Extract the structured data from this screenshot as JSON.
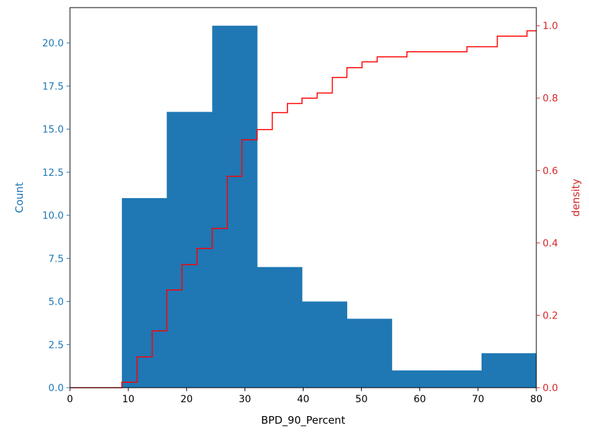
{
  "chart_data": {
    "type": "bar",
    "xlabel": "BPD_90_Percent",
    "xlim": [
      0,
      80
    ],
    "xticks": [
      0,
      10,
      20,
      30,
      40,
      50,
      60,
      70,
      80
    ],
    "left_axis": {
      "label": "Count",
      "color": "#1f77b4",
      "ylim": [
        0,
        22.05
      ],
      "ticks": [
        0.0,
        2.5,
        5.0,
        7.5,
        10.0,
        12.5,
        15.0,
        17.5,
        20.0
      ],
      "tick_labels": [
        "0.0",
        "2.5",
        "5.0",
        "7.5",
        "10.0",
        "12.5",
        "15.0",
        "17.5",
        "20.0"
      ]
    },
    "right_axis": {
      "label": "density",
      "color": "#d62728",
      "ylim": [
        0,
        1.05
      ],
      "ticks": [
        0.0,
        0.2,
        0.4,
        0.6,
        0.8,
        1.0
      ],
      "tick_labels": [
        "0.0",
        "0.2",
        "0.4",
        "0.6",
        "0.8",
        "1.0"
      ]
    },
    "histogram": {
      "color": "#1f77b4",
      "bin_edges": [
        8.9,
        16.6,
        24.4,
        32.1,
        39.8,
        47.5,
        55.2,
        62.9,
        70.6,
        80.0
      ],
      "counts": [
        11,
        16,
        21,
        7,
        5,
        4,
        1,
        1,
        2
      ]
    },
    "cdf": {
      "color": "#ff0000",
      "x": [
        0,
        8.9,
        11.5,
        14.1,
        16.6,
        19.2,
        21.8,
        24.4,
        27.0,
        29.5,
        32.1,
        34.7,
        37.3,
        39.8,
        42.4,
        45.0,
        47.5,
        50.1,
        52.7,
        57.8,
        68.1,
        73.3,
        78.4,
        80.0
      ],
      "y": [
        0.0,
        0.015,
        0.085,
        0.157,
        0.27,
        0.34,
        0.385,
        0.44,
        0.584,
        0.685,
        0.713,
        0.76,
        0.785,
        0.8,
        0.814,
        0.857,
        0.884,
        0.9,
        0.914,
        0.928,
        0.942,
        0.971,
        0.986,
        0.986
      ]
    }
  }
}
